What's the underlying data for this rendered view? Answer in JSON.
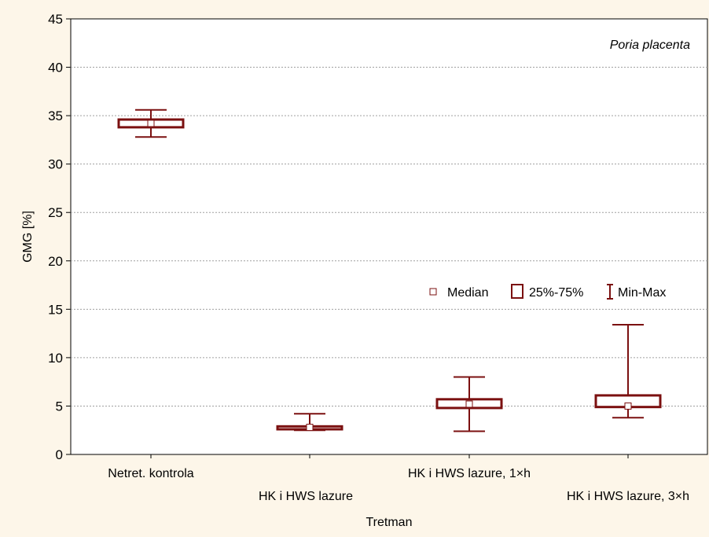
{
  "chart_data": {
    "type": "box",
    "xlabel": "Tretman",
    "ylabel": "GMG [%]",
    "ylim": [
      0,
      45
    ],
    "yticks": [
      0,
      5,
      10,
      15,
      20,
      25,
      30,
      35,
      40,
      45
    ],
    "grid": true,
    "annotation": "Poria placenta",
    "legend": {
      "position": "right-middle",
      "entries": [
        "Median",
        "25%-75%",
        "Min-Max"
      ]
    },
    "categories": [
      "Netret. kontrola",
      "HK i HWS lazure",
      "HK i HWS lazure, 1×h",
      "HK i HWS lazure, 3×h"
    ],
    "boxes": [
      {
        "min": 32.8,
        "q1": 33.8,
        "median": 34.2,
        "q3": 34.6,
        "max": 35.6
      },
      {
        "min": 2.5,
        "q1": 2.6,
        "median": 2.8,
        "q3": 2.9,
        "max": 4.2
      },
      {
        "min": 2.4,
        "q1": 4.8,
        "median": 5.2,
        "q3": 5.7,
        "max": 8.0
      },
      {
        "min": 3.8,
        "q1": 4.9,
        "median": 5.0,
        "q3": 6.1,
        "max": 13.4
      }
    ],
    "colors": {
      "box": "#7b1010",
      "median_marker_fill": "#ffffff",
      "background": "#fdf6e9",
      "plot_area": "#ffffff",
      "grid": "#a0a0a0"
    }
  }
}
